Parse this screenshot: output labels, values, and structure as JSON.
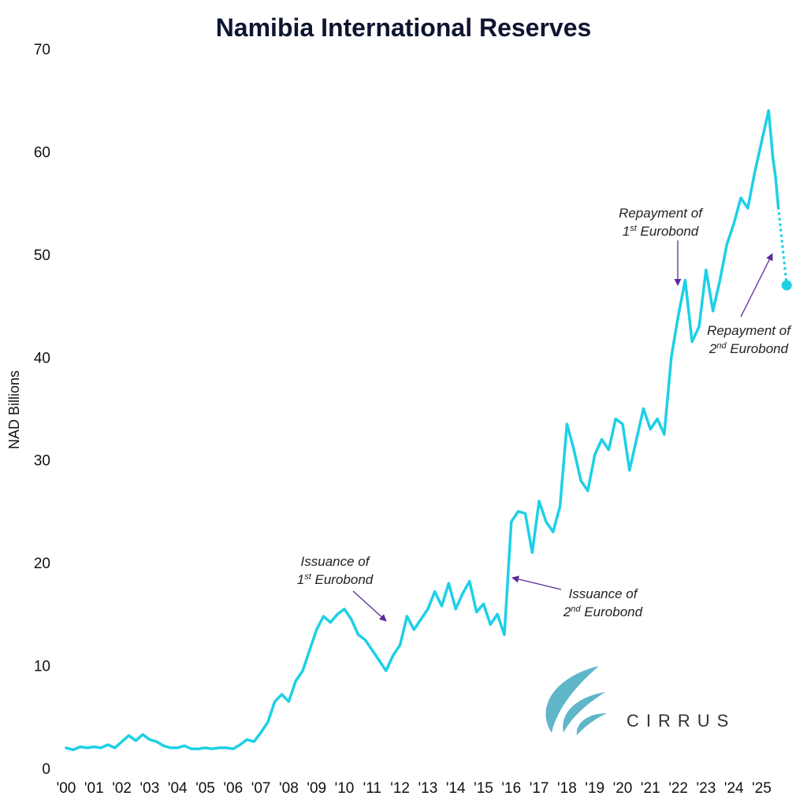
{
  "chart_data": {
    "type": "line",
    "title": "Namibia International Reserves",
    "y_label": "NAD Billions",
    "xlim": [
      2000,
      2025.95
    ],
    "ylim": [
      0,
      70
    ],
    "xticks": [
      {
        "value": 2000,
        "label": "'00"
      },
      {
        "value": 2001,
        "label": "'01"
      },
      {
        "value": 2002,
        "label": "'02"
      },
      {
        "value": 2003,
        "label": "'03"
      },
      {
        "value": 2004,
        "label": "'04"
      },
      {
        "value": 2005,
        "label": "'05"
      },
      {
        "value": 2006,
        "label": "'06"
      },
      {
        "value": 2007,
        "label": "'07"
      },
      {
        "value": 2008,
        "label": "'08"
      },
      {
        "value": 2009,
        "label": "'09"
      },
      {
        "value": 2010,
        "label": "'10"
      },
      {
        "value": 2011,
        "label": "'11"
      },
      {
        "value": 2012,
        "label": "'12"
      },
      {
        "value": 2013,
        "label": "'13"
      },
      {
        "value": 2014,
        "label": "'14"
      },
      {
        "value": 2015,
        "label": "'15"
      },
      {
        "value": 2016,
        "label": "'16"
      },
      {
        "value": 2017,
        "label": "'17"
      },
      {
        "value": 2018,
        "label": "'18"
      },
      {
        "value": 2019,
        "label": "'19"
      },
      {
        "value": 2020,
        "label": "'20"
      },
      {
        "value": 2021,
        "label": "'21"
      },
      {
        "value": 2022,
        "label": "'22"
      },
      {
        "value": 2023,
        "label": "'23"
      },
      {
        "value": 2024,
        "label": "'24"
      },
      {
        "value": 2025,
        "label": "'25"
      }
    ],
    "yticks": [
      0,
      10,
      20,
      30,
      40,
      50,
      60,
      70
    ],
    "grid": false,
    "series": [
      {
        "color": "#1dd0e6",
        "style": "solid",
        "x": [
          2000,
          2000.25,
          2000.5,
          2000.75,
          2001,
          2001.25,
          2001.5,
          2001.75,
          2002,
          2002.25,
          2002.5,
          2002.75,
          2003,
          2003.25,
          2003.5,
          2003.75,
          2004,
          2004.25,
          2004.5,
          2004.75,
          2005,
          2005.25,
          2005.5,
          2005.75,
          2006,
          2006.25,
          2006.5,
          2006.75,
          2007,
          2007.25,
          2007.5,
          2007.75,
          2008,
          2008.25,
          2008.5,
          2008.75,
          2009,
          2009.25,
          2009.5,
          2009.75,
          2010,
          2010.25,
          2010.5,
          2010.75,
          2011,
          2011.25,
          2011.5,
          2011.75,
          2012,
          2012.25,
          2012.5,
          2012.75,
          2013,
          2013.25,
          2013.5,
          2013.75,
          2014,
          2014.25,
          2014.5,
          2014.75,
          2015,
          2015.25,
          2015.5,
          2015.75,
          2016,
          2016.25,
          2016.5,
          2016.75,
          2017,
          2017.25,
          2017.5,
          2017.75,
          2018,
          2018.25,
          2018.5,
          2018.75,
          2019,
          2019.25,
          2019.5,
          2019.75,
          2020,
          2020.25,
          2020.5,
          2020.75,
          2021,
          2021.25,
          2021.5,
          2021.75,
          2022,
          2022.25,
          2022.5,
          2022.75,
          2023,
          2023.25,
          2023.5,
          2023.75,
          2024,
          2024.25,
          2024.5,
          2024.75,
          2025,
          2025.25,
          2025.4,
          2025.5,
          2025.6
        ],
        "values": [
          2.0,
          1.8,
          2.1,
          2.0,
          2.1,
          2.0,
          2.3,
          2.0,
          2.6,
          3.2,
          2.7,
          3.3,
          2.8,
          2.6,
          2.2,
          2.0,
          2.0,
          2.2,
          1.9,
          1.9,
          2.0,
          1.9,
          2.0,
          2.0,
          1.9,
          2.3,
          2.8,
          2.6,
          3.5,
          4.5,
          6.5,
          7.2,
          6.5,
          8.5,
          9.5,
          11.5,
          13.5,
          14.8,
          14.2,
          15.0,
          15.5,
          14.5,
          13.0,
          12.5,
          11.5,
          10.5,
          9.5,
          11.0,
          12.0,
          14.8,
          13.5,
          14.5,
          15.5,
          17.2,
          15.8,
          18.0,
          15.5,
          17.0,
          18.2,
          15.2,
          16.0,
          14.0,
          15.0,
          13.0,
          24.0,
          25.0,
          24.8,
          21.0,
          26.0,
          24.0,
          23.0,
          25.5,
          33.5,
          31.0,
          28.0,
          27.0,
          30.5,
          32.0,
          31.0,
          34.0,
          33.5,
          29.0,
          32.0,
          35.0,
          33.0,
          34.0,
          32.5,
          40.0,
          44.0,
          47.5,
          41.5,
          43.0,
          48.5,
          44.5,
          47.5,
          51.0,
          53.0,
          55.5,
          54.5,
          58.0,
          61.0,
          64.0,
          59.5,
          57.5,
          54.5
        ]
      },
      {
        "color": "#1dd0e6",
        "style": "dotted",
        "marker": "end",
        "x": [
          2025.6,
          2025.9
        ],
        "values": [
          54.5,
          47.0
        ]
      }
    ],
    "annotations": [
      {
        "lines": [
          [
            "Issuance of"
          ],
          [
            "1",
            "st",
            " Eurobond"
          ]
        ]
      },
      {
        "lines": [
          [
            "Issuance of"
          ],
          [
            "2",
            "nd",
            " Eurobond"
          ]
        ]
      },
      {
        "lines": [
          [
            "Repayment of"
          ],
          [
            "1",
            "st",
            " Eurobond"
          ]
        ]
      },
      {
        "lines": [
          [
            "Repayment of"
          ],
          [
            "2",
            "nd",
            " Eurobond"
          ]
        ]
      }
    ],
    "logo": "CIRRUS"
  }
}
